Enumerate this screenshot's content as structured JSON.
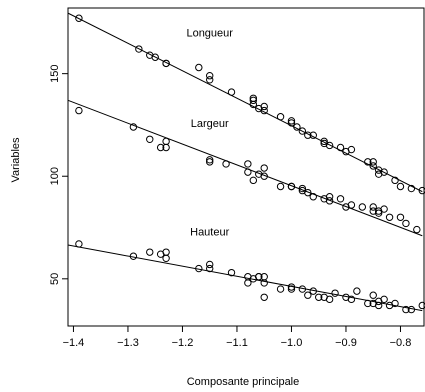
{
  "chart_data": {
    "type": "scatter",
    "title": "",
    "xlabel": "Composante principale",
    "ylabel": "Variables",
    "xlim": [
      -1.41,
      -0.755
    ],
    "ylim": [
      27,
      182
    ],
    "xticks": [
      -1.4,
      -1.3,
      -1.2,
      -1.1,
      -1.0,
      -0.9,
      -0.8
    ],
    "xtick_labels": [
      "−1.4",
      "−1.3",
      "−1.2",
      "−1.1",
      "−1.0",
      "−0.9",
      "−0.8"
    ],
    "yticks": [
      50,
      100,
      150
    ],
    "ytick_labels": [
      "50",
      "100",
      "150"
    ],
    "grid": false,
    "legend": "none",
    "marker": "open-circle",
    "series": [
      {
        "name": "Longueur",
        "label_at": [
          -1.15,
          168
        ],
        "fit": [
          [
            -1.41,
            179.5
          ],
          [
            -0.76,
            92.5
          ]
        ],
        "points": [
          [
            -1.39,
            177
          ],
          [
            -1.28,
            162
          ],
          [
            -1.26,
            159
          ],
          [
            -1.25,
            158
          ],
          [
            -1.23,
            155
          ],
          [
            -1.23,
            155
          ],
          [
            -1.17,
            153
          ],
          [
            -1.15,
            149
          ],
          [
            -1.15,
            147
          ],
          [
            -1.11,
            141
          ],
          [
            -1.07,
            137
          ],
          [
            -1.07,
            138
          ],
          [
            -1.07,
            135
          ],
          [
            -1.06,
            133
          ],
          [
            -1.05,
            134
          ],
          [
            -1.05,
            132
          ],
          [
            -1.02,
            129
          ],
          [
            -1.0,
            126
          ],
          [
            -1.0,
            127
          ],
          [
            -0.99,
            124
          ],
          [
            -0.98,
            122
          ],
          [
            -0.97,
            120
          ],
          [
            -0.96,
            120
          ],
          [
            -0.94,
            117
          ],
          [
            -0.94,
            116
          ],
          [
            -0.93,
            115
          ],
          [
            -0.91,
            114
          ],
          [
            -0.9,
            112
          ],
          [
            -0.89,
            113
          ],
          [
            -0.86,
            107
          ],
          [
            -0.85,
            107
          ],
          [
            -0.85,
            105
          ],
          [
            -0.84,
            103
          ],
          [
            -0.84,
            101
          ],
          [
            -0.83,
            102
          ],
          [
            -0.81,
            98
          ],
          [
            -0.8,
            95
          ],
          [
            -0.78,
            94
          ],
          [
            -0.76,
            93
          ]
        ]
      },
      {
        "name": "Largeur",
        "label_at": [
          -1.15,
          124
        ],
        "fit": [
          [
            -1.41,
            137
          ],
          [
            -0.76,
            71
          ]
        ],
        "points": [
          [
            -1.39,
            132
          ],
          [
            -1.29,
            124
          ],
          [
            -1.26,
            118
          ],
          [
            -1.24,
            114
          ],
          [
            -1.23,
            117
          ],
          [
            -1.23,
            114
          ],
          [
            -1.15,
            107
          ],
          [
            -1.15,
            108
          ],
          [
            -1.12,
            106
          ],
          [
            -1.08,
            106
          ],
          [
            -1.08,
            102
          ],
          [
            -1.07,
            98
          ],
          [
            -1.06,
            101
          ],
          [
            -1.05,
            104
          ],
          [
            -1.05,
            100
          ],
          [
            -1.02,
            95
          ],
          [
            -1.0,
            95
          ],
          [
            -1.0,
            95
          ],
          [
            -0.98,
            93
          ],
          [
            -0.98,
            94
          ],
          [
            -0.97,
            92
          ],
          [
            -0.96,
            90
          ],
          [
            -0.94,
            89
          ],
          [
            -0.93,
            88
          ],
          [
            -0.93,
            90
          ],
          [
            -0.91,
            89
          ],
          [
            -0.9,
            85
          ],
          [
            -0.89,
            86
          ],
          [
            -0.87,
            85
          ],
          [
            -0.85,
            85
          ],
          [
            -0.85,
            83
          ],
          [
            -0.84,
            83
          ],
          [
            -0.84,
            82
          ],
          [
            -0.83,
            84
          ],
          [
            -0.82,
            80
          ],
          [
            -0.8,
            80
          ],
          [
            -0.79,
            77
          ],
          [
            -0.77,
            74
          ]
        ]
      },
      {
        "name": "Hauteur",
        "label_at": [
          -1.15,
          71
        ],
        "fit": [
          [
            -1.41,
            66.5
          ],
          [
            -0.76,
            34.5
          ]
        ],
        "points": [
          [
            -1.39,
            67
          ],
          [
            -1.29,
            61
          ],
          [
            -1.26,
            63
          ],
          [
            -1.24,
            62
          ],
          [
            -1.23,
            63
          ],
          [
            -1.23,
            60
          ],
          [
            -1.17,
            55
          ],
          [
            -1.15,
            57
          ],
          [
            -1.15,
            55
          ],
          [
            -1.11,
            53
          ],
          [
            -1.08,
            48
          ],
          [
            -1.08,
            51
          ],
          [
            -1.07,
            50
          ],
          [
            -1.06,
            51
          ],
          [
            -1.06,
            51
          ],
          [
            -1.05,
            48
          ],
          [
            -1.05,
            51
          ],
          [
            -1.05,
            41
          ],
          [
            -1.02,
            45
          ],
          [
            -1.0,
            45
          ],
          [
            -1.0,
            46
          ],
          [
            -0.98,
            45
          ],
          [
            -0.97,
            42
          ],
          [
            -0.96,
            44
          ],
          [
            -0.95,
            41
          ],
          [
            -0.94,
            41
          ],
          [
            -0.93,
            40
          ],
          [
            -0.92,
            43
          ],
          [
            -0.9,
            41
          ],
          [
            -0.89,
            40
          ],
          [
            -0.88,
            44
          ],
          [
            -0.86,
            38
          ],
          [
            -0.85,
            42
          ],
          [
            -0.85,
            38
          ],
          [
            -0.84,
            37
          ],
          [
            -0.84,
            39
          ],
          [
            -0.83,
            40
          ],
          [
            -0.82,
            37
          ],
          [
            -0.81,
            38
          ],
          [
            -0.79,
            35
          ],
          [
            -0.78,
            35
          ],
          [
            -0.76,
            37
          ]
        ]
      }
    ]
  }
}
